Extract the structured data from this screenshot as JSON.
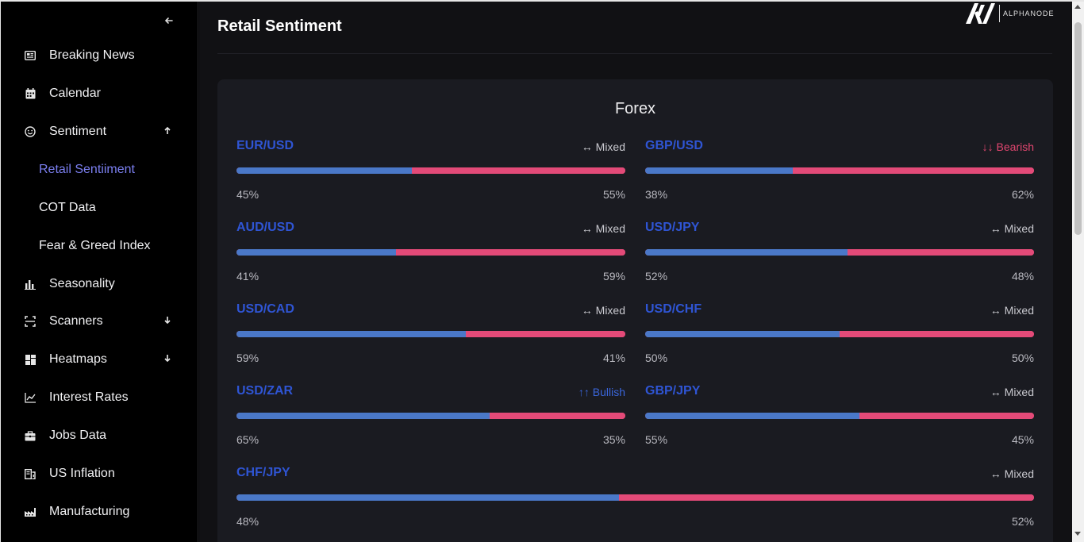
{
  "sidebar": {
    "collapse_icon": "arrow-left-icon",
    "items": [
      {
        "label": "Breaking News",
        "icon": "newspaper-icon"
      },
      {
        "label": "Calendar",
        "icon": "calendar-icon"
      },
      {
        "label": "Sentiment",
        "icon": "smiley-icon",
        "expanded": true
      },
      {
        "label": "Seasonality",
        "icon": "bar-chart-icon"
      },
      {
        "label": "Scanners",
        "icon": "scanner-icon"
      },
      {
        "label": "Heatmaps",
        "icon": "grid-icon"
      },
      {
        "label": "Interest Rates",
        "icon": "line-chart-icon"
      },
      {
        "label": "Jobs Data",
        "icon": "briefcase-icon"
      },
      {
        "label": "US Inflation",
        "icon": "receipt-icon"
      },
      {
        "label": "Manufacturing",
        "icon": "factory-icon"
      }
    ],
    "sub_items": [
      {
        "label": "Retail Sentiiment",
        "active": true
      },
      {
        "label": "COT Data",
        "active": false
      },
      {
        "label": "Fear & Greed Index",
        "active": false
      }
    ]
  },
  "header": {
    "title": "Retail Sentiment",
    "logo_text": "ALPHANODE"
  },
  "forex": {
    "title": "Forex",
    "pairs": [
      {
        "symbol": "EUR/USD",
        "sentiment": "↔ Mixed",
        "kind": "mixed",
        "long": "45%",
        "short": "55%",
        "long_value": 45
      },
      {
        "symbol": "GBP/USD",
        "sentiment": "↓↓ Bearish",
        "kind": "bearish",
        "long": "38%",
        "short": "62%",
        "long_value": 38
      },
      {
        "symbol": "AUD/USD",
        "sentiment": "↔ Mixed",
        "kind": "mixed",
        "long": "41%",
        "short": "59%",
        "long_value": 41
      },
      {
        "symbol": "USD/JPY",
        "sentiment": "↔ Mixed",
        "kind": "mixed",
        "long": "52%",
        "short": "48%",
        "long_value": 52
      },
      {
        "symbol": "USD/CAD",
        "sentiment": "↔ Mixed",
        "kind": "mixed",
        "long": "59%",
        "short": "41%",
        "long_value": 59
      },
      {
        "symbol": "USD/CHF",
        "sentiment": "↔ Mixed",
        "kind": "mixed",
        "long": "50%",
        "short": "50%",
        "long_value": 50
      },
      {
        "symbol": "USD/ZAR",
        "sentiment": "↑↑ Bullish",
        "kind": "bullish",
        "long": "65%",
        "short": "35%",
        "long_value": 65
      },
      {
        "symbol": "GBP/JPY",
        "sentiment": "↔ Mixed",
        "kind": "mixed",
        "long": "55%",
        "short": "45%",
        "long_value": 55
      },
      {
        "symbol": "CHF/JPY",
        "sentiment": "↔ Mixed",
        "kind": "mixed",
        "long": "48%",
        "short": "52%",
        "long_value": 48
      }
    ]
  },
  "colors": {
    "accent": "#7b7ff0",
    "symbol": "#2f55d4",
    "long_bar": "#4a78c8",
    "short_bar": "#e34a78",
    "bearish": "#e0466f",
    "bullish": "#3a66db"
  }
}
